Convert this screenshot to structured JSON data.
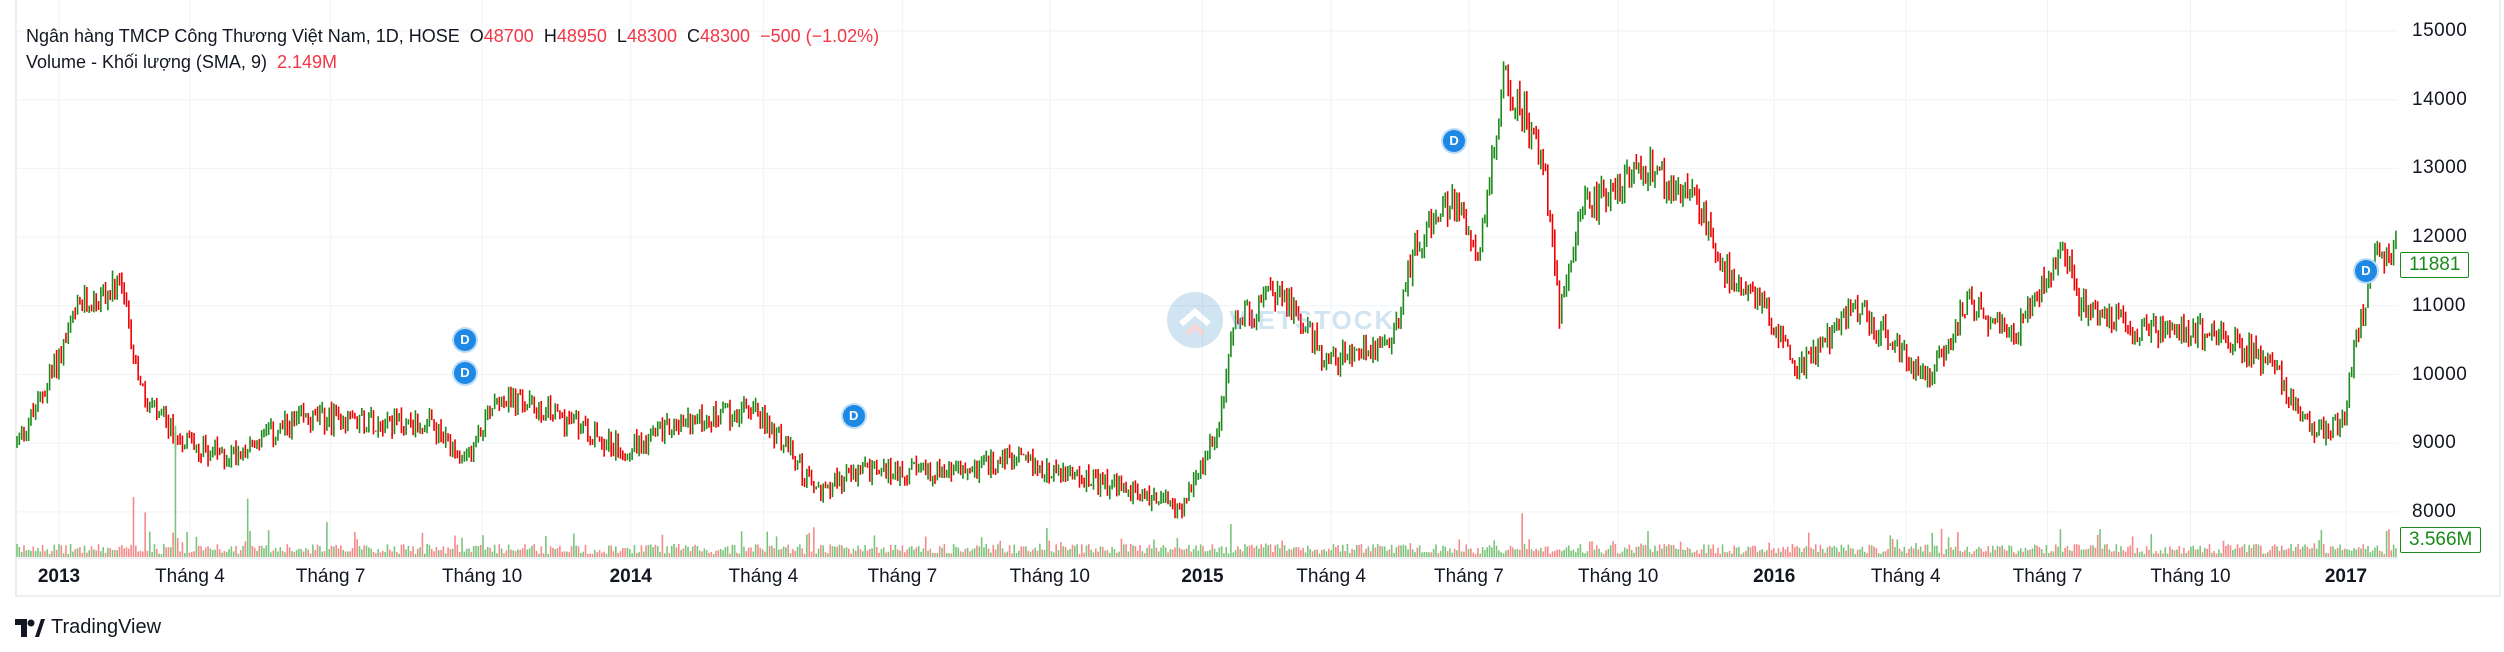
{
  "legend": {
    "title": "Ngân hàng TMCP Công Thương Việt Nam, 1D, HOSE",
    "open_label": "O",
    "open": "48700",
    "high_label": "H",
    "high": "48950",
    "low_label": "L",
    "low": "48300",
    "close_label": "C",
    "close": "48300",
    "change": "−500 (−1.02%)",
    "volume_title": "Volume - Khối lượng (SMA, 9)",
    "volume_value": "2.149M"
  },
  "price_label": "11881",
  "volume_label": "3.566M",
  "brand": "TradingView",
  "watermark": "VIETSTOCK",
  "dividend_marker": "D",
  "colors": {
    "up": "#1a8a1a",
    "down": "#f00000",
    "vol_up": "#7cc47c",
    "vol_down": "#f58a8a",
    "marker": "#1e88e5"
  },
  "chart_data": {
    "type": "ohlc",
    "y_ticks": [
      "15000",
      "14000",
      "13000",
      "12000",
      "11000",
      "10000",
      "9000",
      "8000"
    ],
    "ylim": [
      7300,
      15200
    ],
    "x_ticks": [
      {
        "label": "2013",
        "year": 2013.0,
        "bold": true
      },
      {
        "label": "Tháng 4",
        "year": 2013.229
      },
      {
        "label": "Tháng 7",
        "year": 2013.475
      },
      {
        "label": "Tháng 10",
        "year": 2013.74
      },
      {
        "label": "2014",
        "year": 2014.0,
        "bold": true
      },
      {
        "label": "Tháng 4",
        "year": 2014.232
      },
      {
        "label": "Tháng 7",
        "year": 2014.475
      },
      {
        "label": "Tháng 10",
        "year": 2014.733
      },
      {
        "label": "2015",
        "year": 2015.0,
        "bold": true
      },
      {
        "label": "Tháng 4",
        "year": 2015.225
      },
      {
        "label": "Tháng 7",
        "year": 2015.466
      },
      {
        "label": "Tháng 10",
        "year": 2015.727
      },
      {
        "label": "2016",
        "year": 2016.0,
        "bold": true
      },
      {
        "label": "Tháng 4",
        "year": 2016.23
      },
      {
        "label": "Tháng 7",
        "year": 2016.478
      },
      {
        "label": "Tháng 10",
        "year": 2016.728
      },
      {
        "label": "2017",
        "year": 2017.0,
        "bold": true
      }
    ],
    "close_keypoints": [
      [
        2012.925,
        9000
      ],
      [
        2012.96,
        9500
      ],
      [
        2013.037,
        11000
      ],
      [
        2013.107,
        11270
      ],
      [
        2013.149,
        9600
      ],
      [
        2013.205,
        9100
      ],
      [
        2013.289,
        8800
      ],
      [
        2013.429,
        9350
      ],
      [
        2013.54,
        9350
      ],
      [
        2013.652,
        9250
      ],
      [
        2013.708,
        8650
      ],
      [
        2013.764,
        9700
      ],
      [
        2013.876,
        9400
      ],
      [
        2013.988,
        8900
      ],
      [
        2014.072,
        9250
      ],
      [
        2014.212,
        9500
      ],
      [
        2014.268,
        9000
      ],
      [
        2014.324,
        8300
      ],
      [
        2014.408,
        8600
      ],
      [
        2014.576,
        8580
      ],
      [
        2014.66,
        8770
      ],
      [
        2014.8,
        8460
      ],
      [
        2014.968,
        8070
      ],
      [
        2015.024,
        9120
      ],
      [
        2015.057,
        10760
      ],
      [
        2015.136,
        11230
      ],
      [
        2015.22,
        10180
      ],
      [
        2015.331,
        10530
      ],
      [
        2015.373,
        11930
      ],
      [
        2015.443,
        12520
      ],
      [
        2015.485,
        11800
      ],
      [
        2015.527,
        14270
      ],
      [
        2015.569,
        13690
      ],
      [
        2015.597,
        13100
      ],
      [
        2015.625,
        10880
      ],
      [
        2015.667,
        12400
      ],
      [
        2015.779,
        12990
      ],
      [
        2015.863,
        12520
      ],
      [
        2015.919,
        11460
      ],
      [
        2015.975,
        11110
      ],
      [
        2016.045,
        10060
      ],
      [
        2016.143,
        11000
      ],
      [
        2016.269,
        9940
      ],
      [
        2016.339,
        11000
      ],
      [
        2016.423,
        10640
      ],
      [
        2016.507,
        11930
      ],
      [
        2016.535,
        11000
      ],
      [
        2016.647,
        10640
      ],
      [
        2016.759,
        10640
      ],
      [
        2016.871,
        10180
      ],
      [
        2016.941,
        9120
      ],
      [
        2016.997,
        9350
      ],
      [
        2017.011,
        10290
      ],
      [
        2017.053,
        11700
      ],
      [
        2017.081,
        11881
      ]
    ],
    "volume_spikes_millions": [
      [
        2013.13,
        8.2
      ],
      [
        2013.15,
        6.1
      ],
      [
        2013.205,
        18.0
      ],
      [
        2013.33,
        8.0
      ],
      [
        2013.47,
        4.8
      ],
      [
        2015.05,
        4.5
      ],
      [
        2015.56,
        6.0
      ],
      [
        2016.5,
        3.8
      ],
      [
        2017.07,
        3.566
      ]
    ],
    "dividend_markers_years": [
      [
        2013.71,
        10500
      ],
      [
        2013.71,
        10020
      ],
      [
        2014.39,
        9400
      ],
      [
        2015.44,
        13400
      ],
      [
        2017.035,
        11500
      ]
    ]
  }
}
